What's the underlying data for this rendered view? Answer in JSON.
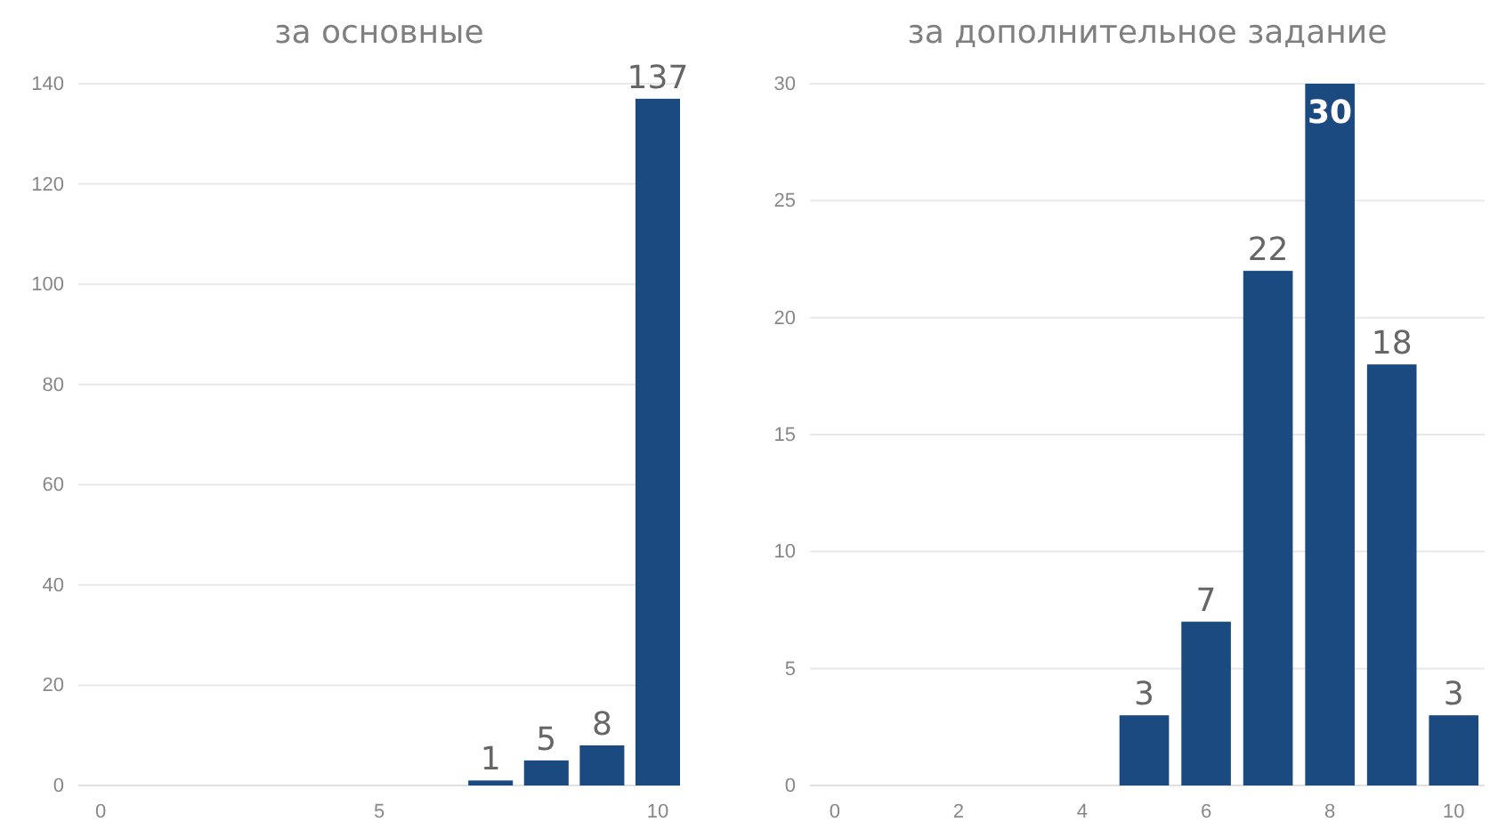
{
  "chart_data": [
    {
      "type": "bar",
      "title": "за основные",
      "x": [
        7,
        8,
        9,
        10
      ],
      "values": [
        1,
        5,
        8,
        137
      ],
      "color": "#1a4a80",
      "xlim": [
        -0.4,
        10.4
      ],
      "xticks": [
        0,
        5,
        10
      ],
      "ylim": [
        0,
        140
      ],
      "yticks": [
        0,
        20,
        40,
        60,
        80,
        100,
        120,
        140
      ],
      "grid": "y",
      "data_labels": true
    },
    {
      "type": "bar",
      "title": "за дополнительное задание",
      "x": [
        5,
        6,
        7,
        8,
        9,
        10
      ],
      "values": [
        3,
        7,
        22,
        30,
        18,
        3
      ],
      "color": "#1a4a80",
      "xlim": [
        -0.4,
        10.5
      ],
      "xticks": [
        0,
        2,
        4,
        6,
        8,
        10
      ],
      "ylim": [
        0,
        30
      ],
      "yticks": [
        0,
        5,
        10,
        15,
        20,
        25,
        30
      ],
      "grid": "y",
      "data_labels": true
    }
  ]
}
